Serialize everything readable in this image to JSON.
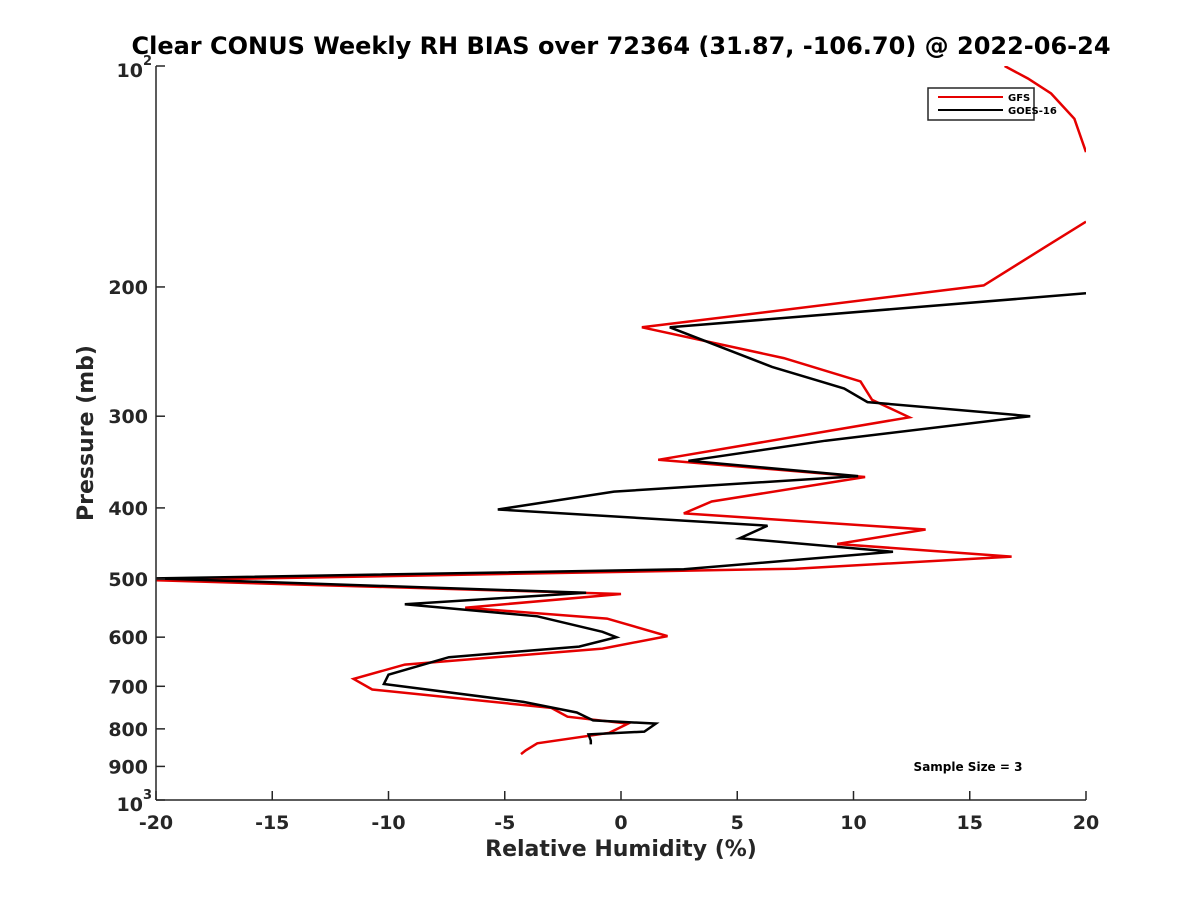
{
  "chart_data": {
    "type": "line",
    "title": "Clear CONUS Weekly RH BIAS over 72364 (31.87, -106.70) @ 2022-06-24",
    "xlabel": "Relative Humidity (%)",
    "ylabel": "Pressure (mb)",
    "xlim": [
      -20,
      20
    ],
    "ylim": [
      100,
      1000
    ],
    "y_scale": "log",
    "y_reversed": true,
    "grid": false,
    "legend_position": "top-right",
    "x_ticks": [
      "-20",
      "-15",
      "-10",
      "-5",
      "0",
      "5",
      "10",
      "15",
      "20"
    ],
    "y_ticks": [
      {
        "value": 100,
        "base": "10",
        "exp": "2"
      },
      {
        "value": 200,
        "label": "200"
      },
      {
        "value": 300,
        "label": "300"
      },
      {
        "value": 400,
        "label": "400"
      },
      {
        "value": 500,
        "label": "500"
      },
      {
        "value": 600,
        "label": "600"
      },
      {
        "value": 700,
        "label": "700"
      },
      {
        "value": 800,
        "label": "800"
      },
      {
        "value": 900,
        "label": "900"
      },
      {
        "value": 1000,
        "base": "10",
        "exp": "3"
      }
    ],
    "annotation": "Sample Size = 3",
    "series": [
      {
        "name": "GFS",
        "color": "#e50000",
        "segments": [
          [
            [
              16.5,
              100
            ],
            [
              17.5,
              104
            ],
            [
              18.5,
              109
            ],
            [
              19.5,
              118
            ],
            [
              20,
              131
            ]
          ],
          [
            [
              20,
              163
            ],
            [
              18.3,
              176
            ],
            [
              15.6,
              199
            ],
            [
              0.9,
              227
            ],
            [
              7.0,
              250
            ],
            [
              10.3,
              269
            ],
            [
              10.8,
              285
            ],
            [
              12.4,
              301
            ],
            [
              1.6,
              344
            ],
            [
              10.5,
              363
            ],
            [
              3.9,
              392
            ],
            [
              2.7,
              407
            ],
            [
              13.1,
              428
            ],
            [
              9.3,
              448
            ],
            [
              16.8,
              466
            ],
            [
              7.5,
              484
            ],
            [
              -20,
              502
            ],
            [
              0.0,
              524
            ],
            [
              -6.7,
              547
            ],
            [
              -0.6,
              566
            ],
            [
              2.0,
              598
            ],
            [
              -0.8,
              622
            ],
            [
              -9.3,
              654
            ],
            [
              -11.5,
              684
            ],
            [
              -10.7,
              707
            ],
            [
              -3.0,
              749
            ],
            [
              -2.3,
              770
            ],
            [
              0.3,
              787
            ],
            [
              -0.5,
              810
            ],
            [
              -3.6,
              837
            ],
            [
              -4.1,
              856
            ],
            [
              -4.3,
              866
            ]
          ]
        ]
      },
      {
        "name": "GOES-16",
        "color": "#000000",
        "segments": [
          [
            [
              20,
              204
            ],
            [
              2.1,
              227
            ],
            [
              6.5,
              257
            ],
            [
              9.6,
              275
            ],
            [
              10.6,
              287
            ],
            [
              17.6,
              300
            ],
            [
              8.8,
              324
            ],
            [
              2.9,
              345
            ],
            [
              10.2,
              362
            ],
            [
              -0.3,
              380
            ],
            [
              -5.3,
              402
            ],
            [
              6.3,
              423
            ],
            [
              5.1,
              440
            ],
            [
              11.7,
              459
            ],
            [
              2.7,
              485
            ],
            [
              -20,
              499
            ],
            [
              -1.5,
              522
            ],
            [
              -9.3,
              541
            ],
            [
              -3.6,
              562
            ],
            [
              -0.8,
              590
            ],
            [
              -0.2,
              600
            ],
            [
              -1.8,
              618
            ],
            [
              -7.4,
              639
            ],
            [
              -10.0,
              675
            ],
            [
              -10.2,
              695
            ],
            [
              -4.2,
              735
            ],
            [
              -1.9,
              760
            ],
            [
              -1.2,
              779
            ],
            [
              1.5,
              787
            ],
            [
              1.0,
              807
            ],
            [
              -1.4,
              814
            ],
            [
              -1.3,
              830
            ],
            [
              -1.3,
              840
            ]
          ]
        ]
      }
    ]
  }
}
